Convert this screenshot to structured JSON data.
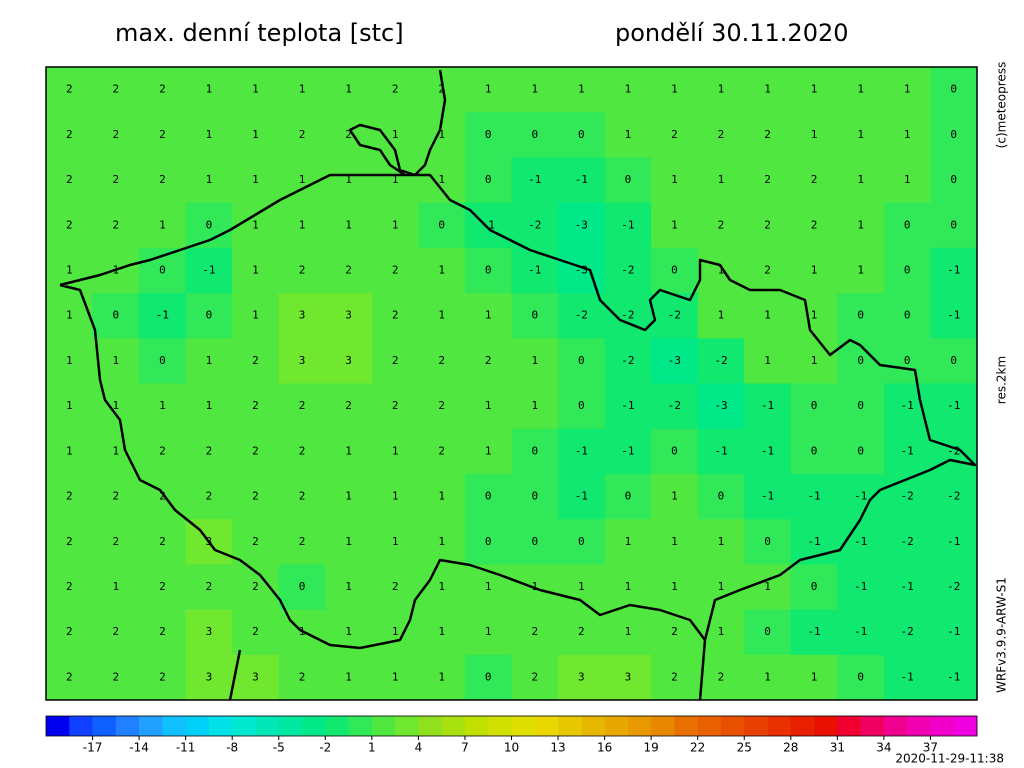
{
  "header": {
    "title": "max. denní teplota [stc]",
    "date": "pondělí 30.11.2020"
  },
  "credits": {
    "copyright": "(c)meteopress",
    "resolution": "res.2km",
    "model": "WRFv3.9.9-ARW-S1"
  },
  "timestamp": "2020-11-29-11:38",
  "grid": {
    "values": [
      [
        2,
        2,
        2,
        1,
        1,
        1,
        1,
        2,
        2,
        1,
        1,
        1,
        1,
        1,
        1,
        1,
        1,
        1,
        1,
        0
      ],
      [
        2,
        2,
        2,
        1,
        1,
        2,
        2,
        1,
        1,
        0,
        0,
        0,
        1,
        2,
        2,
        2,
        1,
        1,
        1,
        0
      ],
      [
        2,
        2,
        2,
        1,
        1,
        1,
        1,
        1,
        1,
        0,
        -1,
        -1,
        0,
        1,
        1,
        2,
        2,
        1,
        1,
        0
      ],
      [
        2,
        2,
        1,
        0,
        1,
        1,
        1,
        1,
        0,
        -1,
        -2,
        -3,
        -1,
        1,
        2,
        2,
        2,
        1,
        0,
        0
      ],
      [
        1,
        1,
        0,
        -1,
        1,
        2,
        2,
        2,
        1,
        0,
        -1,
        -3,
        -2,
        0,
        1,
        2,
        1,
        1,
        0,
        -1
      ],
      [
        1,
        0,
        -1,
        0,
        1,
        3,
        3,
        2,
        1,
        1,
        0,
        -2,
        -2,
        -2,
        1,
        1,
        1,
        0,
        0,
        -1
      ],
      [
        1,
        1,
        0,
        1,
        2,
        3,
        3,
        2,
        2,
        2,
        1,
        0,
        -2,
        -3,
        -2,
        1,
        1,
        0,
        0,
        0
      ],
      [
        1,
        1,
        1,
        1,
        2,
        2,
        2,
        2,
        2,
        1,
        1,
        0,
        -1,
        -2,
        -3,
        -1,
        0,
        0,
        -1,
        -1
      ],
      [
        1,
        1,
        2,
        2,
        2,
        2,
        1,
        1,
        2,
        1,
        0,
        -1,
        -1,
        0,
        -1,
        -1,
        0,
        0,
        -1,
        -2
      ],
      [
        2,
        2,
        2,
        2,
        2,
        2,
        1,
        1,
        1,
        0,
        0,
        -1,
        0,
        1,
        0,
        -1,
        -1,
        -1,
        -2,
        -2
      ],
      [
        2,
        2,
        2,
        3,
        2,
        2,
        1,
        1,
        1,
        0,
        0,
        0,
        1,
        1,
        1,
        0,
        -1,
        -1,
        -2,
        -1
      ],
      [
        2,
        1,
        2,
        2,
        2,
        0,
        1,
        2,
        1,
        1,
        1,
        1,
        1,
        1,
        1,
        1,
        0,
        -1,
        -1,
        -2
      ],
      [
        2,
        2,
        2,
        3,
        2,
        1,
        1,
        1,
        1,
        1,
        2,
        2,
        1,
        2,
        1,
        0,
        -1,
        -1,
        -2,
        -1
      ],
      [
        2,
        2,
        2,
        3,
        3,
        2,
        1,
        1,
        1,
        0,
        2,
        3,
        3,
        2,
        2,
        1,
        1,
        0,
        -1,
        -1
      ]
    ]
  },
  "colorbar": {
    "clim": [
      -20,
      40
    ],
    "colors": [
      "#0000f0",
      "#1040ff",
      "#1060ff",
      "#2080ff",
      "#20a0ff",
      "#10c0ff",
      "#00d0f8",
      "#00e0e8",
      "#00e8d0",
      "#00e8b8",
      "#00e8a0",
      "#00e888",
      "#10e870",
      "#30e858",
      "#50e840",
      "#70e830",
      "#90e020",
      "#a8e010",
      "#c0e000",
      "#d0e000",
      "#e0e000",
      "#e8d800",
      "#e8c800",
      "#e8b800",
      "#e8a800",
      "#e89800",
      "#e88800",
      "#e87000",
      "#e86000",
      "#e85000",
      "#e84000",
      "#e83000",
      "#e82000",
      "#e81000",
      "#f00030",
      "#f00060",
      "#f00090",
      "#f000b0",
      "#f000c8",
      "#f000e0"
    ],
    "ticks": [
      -17,
      -14,
      -11,
      -8,
      -5,
      -2,
      1,
      4,
      7,
      10,
      13,
      16,
      19,
      22,
      25,
      28,
      31,
      34,
      37
    ]
  }
}
